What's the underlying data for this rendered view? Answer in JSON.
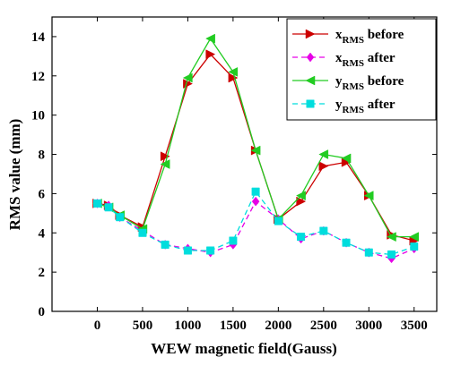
{
  "chart_data": {
    "type": "line",
    "xlabel": "WEW magnetic field(Gauss)",
    "ylabel": "RMS value (mm)",
    "xlim": [
      -500,
      3750
    ],
    "ylim": [
      0,
      15
    ],
    "x_ticks": [
      0,
      500,
      1000,
      1500,
      2000,
      2500,
      3000,
      3500
    ],
    "y_ticks": [
      0,
      2,
      4,
      6,
      8,
      10,
      12,
      14
    ],
    "grid": false,
    "legend_position": "top-right",
    "x": [
      0,
      125,
      250,
      500,
      750,
      1000,
      1250,
      1500,
      1750,
      2000,
      2250,
      2500,
      2750,
      3000,
      3250,
      3500
    ],
    "series": [
      {
        "name": "x_RMS before",
        "legend_main": "x",
        "legend_sub": "RMS",
        "legend_suffix": " before",
        "color": "#cc0000",
        "dashed": false,
        "marker": "triangle-right",
        "values": [
          5.5,
          5.4,
          4.9,
          4.3,
          7.9,
          11.6,
          13.1,
          11.9,
          8.2,
          4.7,
          5.6,
          7.4,
          7.6,
          5.9,
          3.9,
          3.6
        ]
      },
      {
        "name": "x_RMS after",
        "legend_main": "x",
        "legend_sub": "RMS",
        "legend_suffix": " after",
        "color": "#e600e6",
        "dashed": true,
        "marker": "diamond",
        "values": [
          5.5,
          5.4,
          4.8,
          4.1,
          3.4,
          3.2,
          3.0,
          3.4,
          5.6,
          4.7,
          3.7,
          4.1,
          3.5,
          3.0,
          2.7,
          3.2
        ]
      },
      {
        "name": "y_RMS before",
        "legend_main": "y",
        "legend_sub": "RMS",
        "legend_suffix": " before",
        "color": "#22cc22",
        "dashed": false,
        "marker": "triangle-left",
        "values": [
          5.5,
          5.3,
          4.9,
          4.2,
          7.5,
          11.9,
          13.9,
          12.2,
          8.2,
          4.7,
          5.9,
          8.0,
          7.8,
          5.9,
          3.8,
          3.8
        ]
      },
      {
        "name": "y_RMS after",
        "legend_main": "y",
        "legend_sub": "RMS",
        "legend_suffix": " after",
        "color": "#00dddd",
        "dashed": true,
        "marker": "square",
        "values": [
          5.5,
          5.3,
          4.8,
          4.0,
          3.4,
          3.1,
          3.1,
          3.6,
          6.1,
          4.6,
          3.8,
          4.1,
          3.5,
          3.0,
          2.9,
          3.3
        ]
      }
    ]
  }
}
